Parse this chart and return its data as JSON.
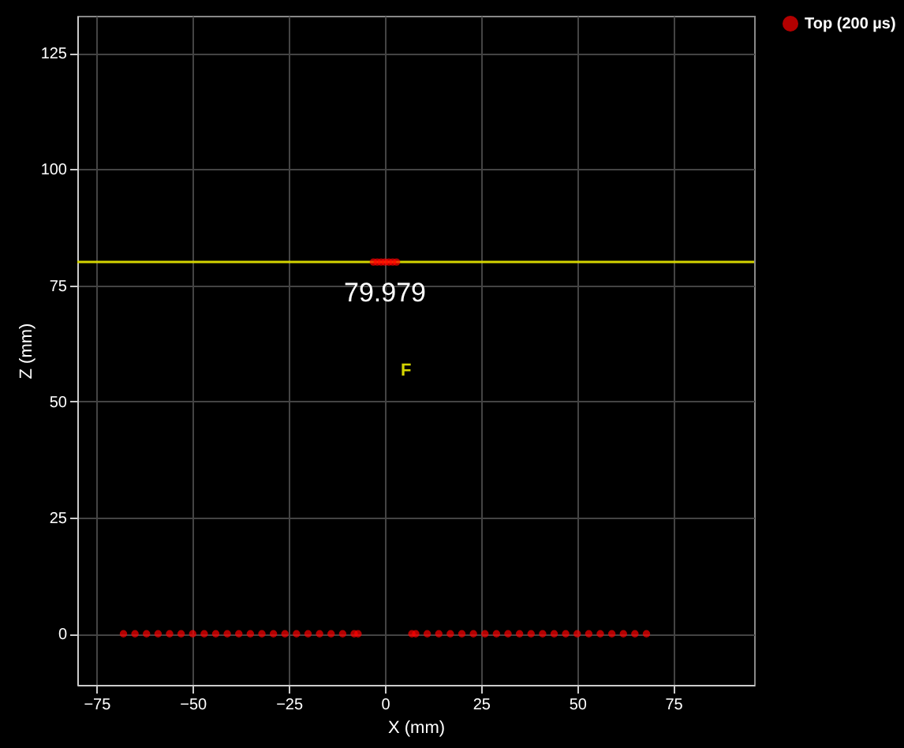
{
  "chart_data": {
    "type": "scatter",
    "xlabel": "X (mm)",
    "ylabel": "Z (mm)",
    "xlim": [
      -80,
      96
    ],
    "ylim": [
      -11,
      133
    ],
    "xticks": [
      -75,
      -50,
      -25,
      0,
      25,
      50,
      75
    ],
    "yticks": [
      0,
      25,
      50,
      75,
      100,
      125
    ],
    "grid": true,
    "legend": "top right",
    "marker": "circle",
    "series": [
      {
        "name": "Top (200 µs)",
        "color": "#ff0000",
        "x": [
          -68,
          -65,
          -62,
          -59,
          -56,
          -53,
          -50,
          -47,
          -44,
          -41,
          -38,
          -35,
          -32,
          -29,
          -26,
          -23,
          -20,
          -17,
          -14,
          -11,
          -8,
          -7,
          7,
          8,
          11,
          14,
          17,
          20,
          23,
          26,
          29,
          32,
          35,
          38,
          41,
          44,
          47,
          50,
          53,
          56,
          59,
          62,
          65,
          68,
          -3,
          -2,
          -1,
          0,
          1,
          2,
          3
        ],
        "values": [
          0,
          0,
          0,
          0,
          0,
          0,
          0,
          0,
          0,
          0,
          0,
          0,
          0,
          0,
          0,
          0,
          0,
          0,
          0,
          0,
          0,
          0,
          0,
          0,
          0,
          0,
          0,
          0,
          0,
          0,
          0,
          0,
          0,
          0,
          0,
          0,
          0,
          0,
          0,
          0,
          0,
          0,
          0,
          0,
          80,
          80,
          80,
          80,
          80,
          80,
          80
        ]
      }
    ],
    "ref_lines": [
      {
        "axis": "y",
        "value": 80,
        "color": "#d4d400"
      }
    ],
    "annotations": [
      {
        "text": "79.979",
        "x": 0,
        "y": 80
      },
      "F"
    ]
  }
}
